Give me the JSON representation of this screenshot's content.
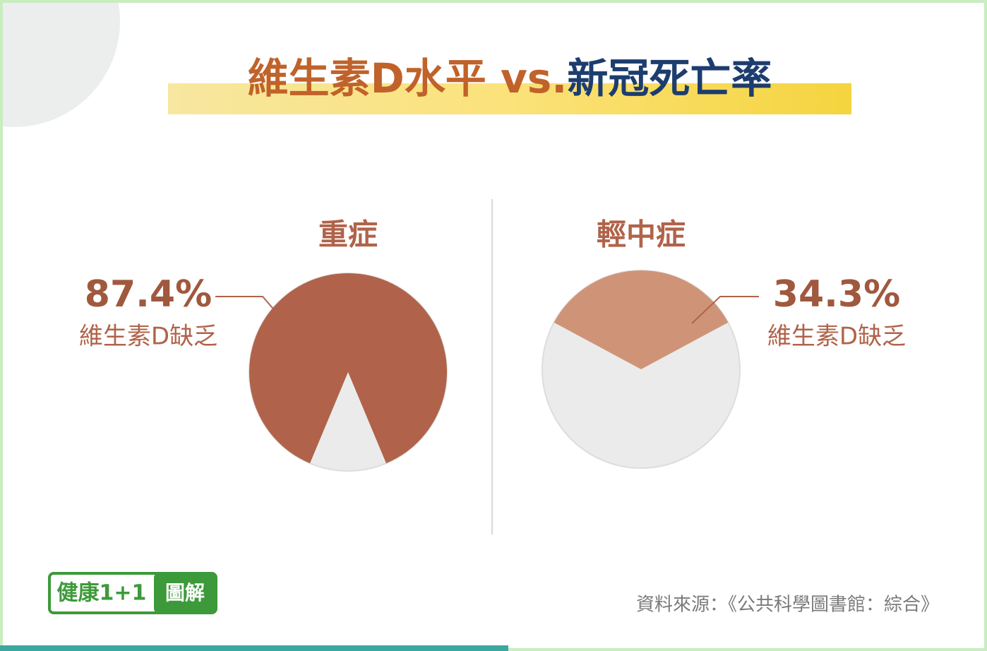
{
  "title_part1": "維生素D水平 vs.",
  "title_part2": "新冠死亡率",
  "chart_data": [
    {
      "type": "pie",
      "title": "重症",
      "values": [
        87.4
      ],
      "value_labels": [
        "87.4%"
      ],
      "annotation": "維生素D缺乏",
      "color": "#b0634a"
    },
    {
      "type": "pie",
      "title": "輕中症",
      "values": [
        34.3
      ],
      "value_labels": [
        "34.3%"
      ],
      "annotation": "維生素D缺乏",
      "color": "#cf9478"
    }
  ],
  "logo": {
    "main": "健康1+1",
    "tag": "圖解"
  },
  "source": "資料來源：《公共科學圖書館：綜合》"
}
